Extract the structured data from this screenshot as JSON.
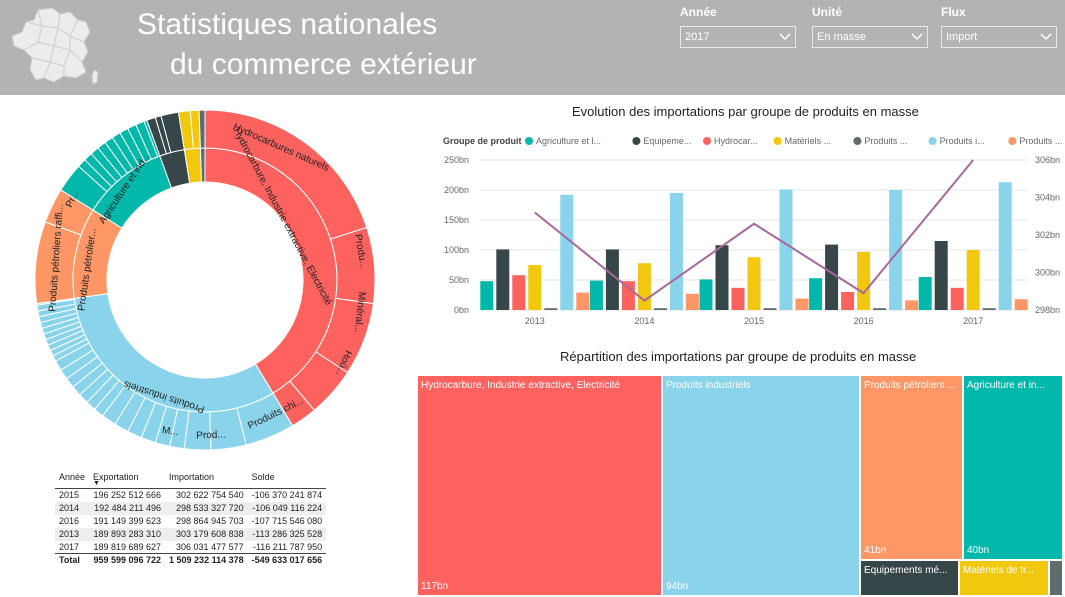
{
  "header": {
    "title_line1": "Statistiques nationales",
    "title_line2": "du commerce extérieur",
    "bg_color": "#b3b3b3"
  },
  "slicers": [
    {
      "label": "Année",
      "value": "2017"
    },
    {
      "label": "Unité",
      "value": "En masse"
    },
    {
      "label": "Flux",
      "value": "Import"
    }
  ],
  "colors": {
    "agriculture": "#01b8aa",
    "equipements": "#374649",
    "hydrocarbures": "#fd625e",
    "materiels": "#f2c80f",
    "produits_grey": "#5f6b6d",
    "produits_industriels": "#8ad4eb",
    "produits_petroliers": "#fe9666",
    "masse_line": "#a66999"
  },
  "sunburst": {
    "labels": {
      "hydro_outer_1": "Hydrocarbures naturels",
      "hydro_inner": "Hydrocarbure, Industrie extractive, Electricité",
      "hydro_outer_2": "Produ...",
      "hydro_outer_3": "Minéral...",
      "hydro_outer_4": "Hoù...",
      "indus_inner": "Produits industriels",
      "indus_outer_1": "Produits chi...",
      "indus_outer_2": "Prod...",
      "indus_outer_3": "M...",
      "petrol_outer": "Produits pétroliers raffi...",
      "petrol_inner": "Produits pétrolier...",
      "agri_inner": "Agriculture et ind...",
      "agri_outer": "Pr..."
    }
  },
  "table": {
    "headers": [
      "Année",
      "Exportation",
      "Importation",
      "Solde"
    ],
    "rows": [
      [
        "2015",
        "196 252 512 666",
        "302 622 754 540",
        "-106 370 241 874"
      ],
      [
        "2014",
        "192 484 211 496",
        "298 533 327 720",
        "-106 049 116 224"
      ],
      [
        "2016",
        "191 149 399 623",
        "298 864 945 703",
        "-107 715 546 080"
      ],
      [
        "2013",
        "189 893 283 310",
        "303 179 608 838",
        "-113 286 325 528"
      ],
      [
        "2017",
        "189 819 689 627",
        "306 031 477 577",
        "-116 211 787 950"
      ]
    ],
    "total": [
      "Total",
      "959 599 096 722",
      "1 509 232 114 378",
      "-549 633 017 656"
    ]
  },
  "chart_data": [
    {
      "type": "bar",
      "title": "Evolution des importations par groupe de produits en masse",
      "legend_title": "Groupe de produit",
      "legend_position": "top",
      "categories": [
        "2013",
        "2014",
        "2015",
        "2016",
        "2017"
      ],
      "ylim": [
        0,
        250
      ],
      "yticks": [
        "0bn",
        "50bn",
        "100bn",
        "150bn",
        "200bn",
        "250bn"
      ],
      "y2lim": [
        298,
        306
      ],
      "y2ticks": [
        "298bn",
        "300bn",
        "302bn",
        "304bn",
        "306bn"
      ],
      "series": [
        {
          "name": "Agriculture et l...",
          "color_key": "agriculture",
          "values": [
            48,
            49,
            51,
            53,
            55
          ]
        },
        {
          "name": "Equipeme...",
          "color_key": "equipements",
          "values": [
            101,
            101,
            108,
            109,
            115
          ]
        },
        {
          "name": "Hydrocar...",
          "color_key": "hydrocarbures",
          "values": [
            58,
            48,
            37,
            30,
            37
          ]
        },
        {
          "name": "Matériels ...",
          "color_key": "materiels",
          "values": [
            75,
            78,
            88,
            97,
            100
          ]
        },
        {
          "name": "Produits ...",
          "color_key": "produits_grey",
          "values": [
            3,
            3,
            3,
            3,
            3
          ]
        },
        {
          "name": "Produits i...",
          "color_key": "produits_industriels",
          "values": [
            192,
            195,
            201,
            200,
            213
          ]
        },
        {
          "name": "Produits ...",
          "color_key": "produits_petroliers",
          "values": [
            29,
            27,
            19,
            16,
            18
          ]
        }
      ],
      "line_series": {
        "name": "Masse",
        "color_key": "masse_line",
        "values": [
          303.2,
          298.5,
          302.6,
          298.9,
          306.0
        ]
      }
    },
    {
      "type": "treemap",
      "title": "Répartition des importations par groupe de produits en masse",
      "items": [
        {
          "name": "Hydrocarbure, Industrie extractive, Electricité",
          "value_label": "117bn",
          "color_key": "hydrocarbures"
        },
        {
          "name": "Produits industriels",
          "value_label": "94bn",
          "color_key": "produits_industriels"
        },
        {
          "name": "Produits pétroliers ...",
          "value_label": "41bn",
          "color_key": "produits_petroliers"
        },
        {
          "name": "Agriculture et in...",
          "value_label": "40bn",
          "color_key": "agriculture"
        },
        {
          "name": "Equipements mé...",
          "value_label": "",
          "color_key": "equipements"
        },
        {
          "name": "Matériels de tr...",
          "value_label": "",
          "color_key": "materiels"
        },
        {
          "name": "",
          "value_label": "",
          "color_key": "produits_grey"
        }
      ]
    }
  ]
}
